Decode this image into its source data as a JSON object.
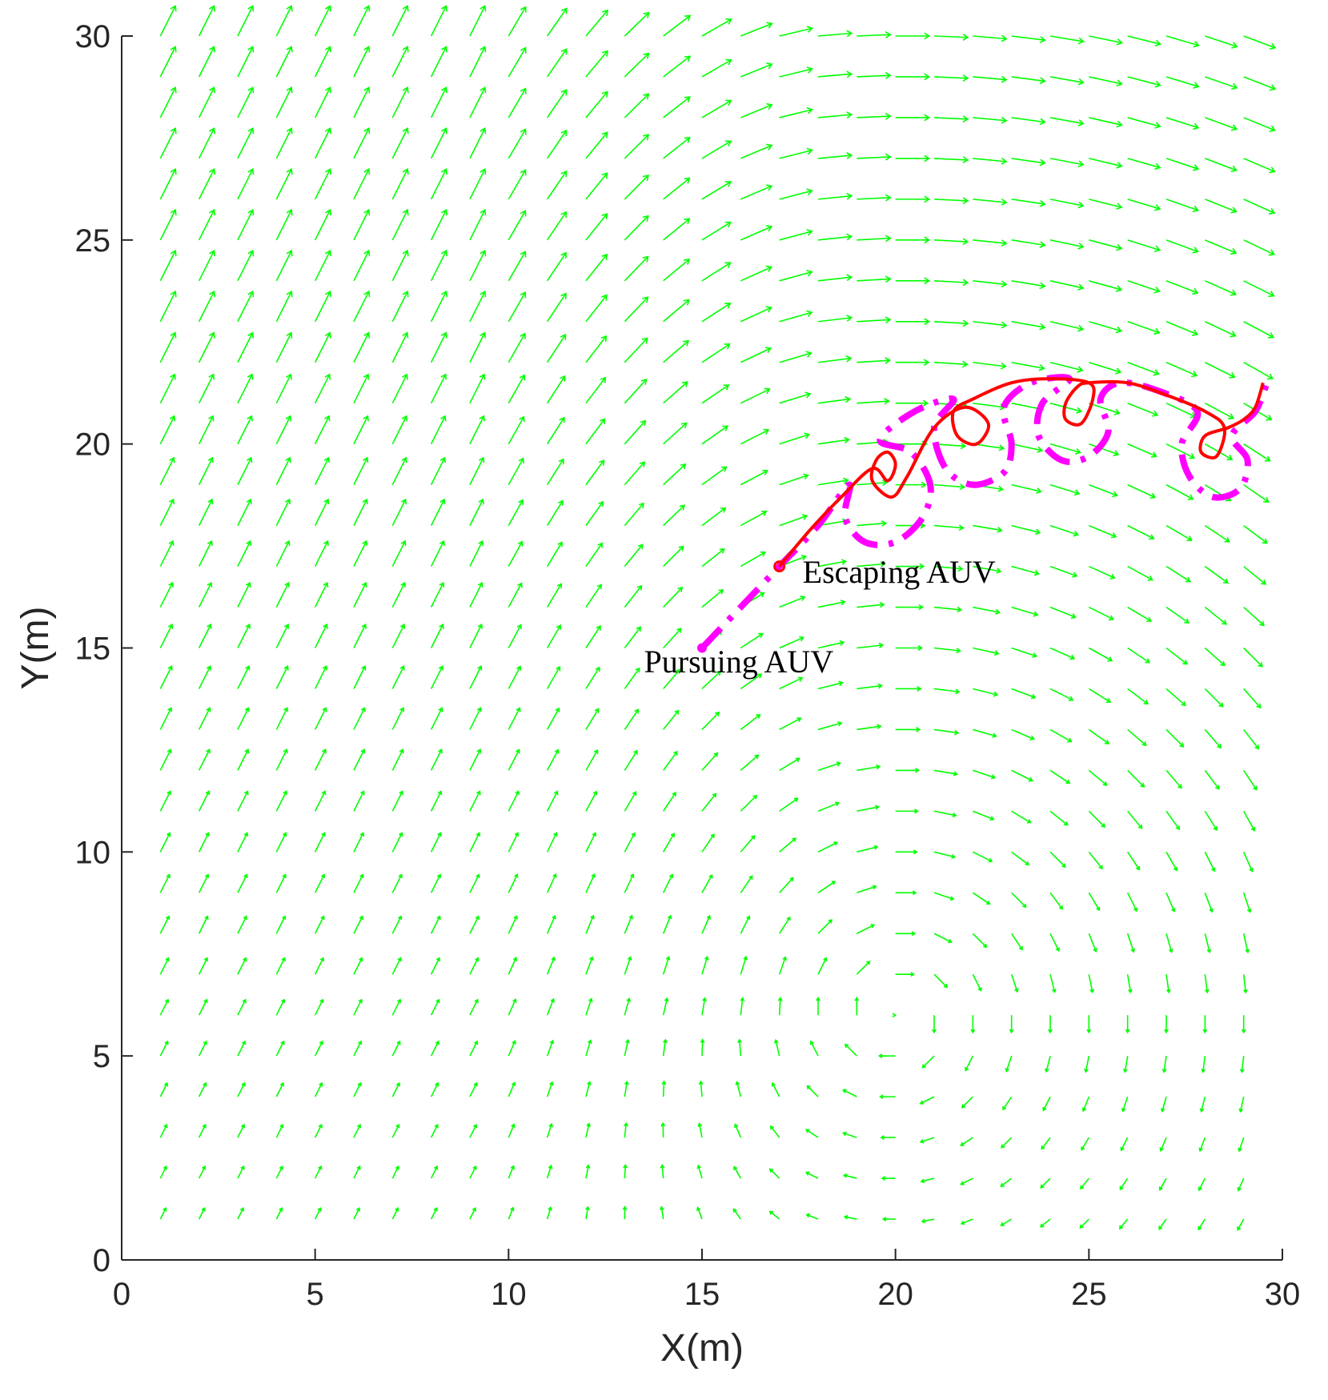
{
  "chart_data": {
    "type": "line",
    "xlabel": "X(m)",
    "ylabel": "Y(m)",
    "xlim": [
      0,
      30
    ],
    "ylim": [
      0,
      30
    ],
    "xticks": [
      0,
      5,
      10,
      15,
      20,
      25,
      30
    ],
    "yticks": [
      0,
      5,
      10,
      15,
      20,
      25,
      30
    ],
    "grid": false,
    "colors": {
      "field": "#00ff00",
      "pursuer": "#ff00ff",
      "escaper": "#ff0000",
      "axis": "#262626"
    },
    "vector_field": {
      "description": "current arrows on a regular grid",
      "x_grid": [
        1,
        2,
        3,
        4,
        5,
        6,
        7,
        8,
        9,
        10,
        11,
        12,
        13,
        14,
        15,
        16,
        17,
        18,
        19,
        20,
        21,
        22,
        23,
        24,
        25,
        26,
        27,
        28,
        29
      ],
      "y_grid": [
        1,
        2,
        3,
        4,
        5,
        6,
        7,
        8,
        9,
        10,
        11,
        12,
        13,
        14,
        15,
        16,
        17,
        18,
        19,
        20,
        21,
        22,
        23,
        24,
        25,
        26,
        27,
        28,
        29,
        30
      ],
      "vortex_center": [
        20,
        6
      ],
      "uniform_direction": [
        0.5,
        1.0
      ]
    },
    "series": [
      {
        "marker": "start-dot",
        "style": "dash-dot",
        "points": [
          [
            15,
            15
          ],
          [
            16,
            16
          ],
          [
            17,
            17
          ],
          [
            18,
            18
          ],
          [
            18.8,
            19.0
          ],
          [
            18.7,
            18.2
          ],
          [
            19.2,
            17.6
          ],
          [
            20.0,
            17.6
          ],
          [
            20.7,
            18.2
          ],
          [
            20.9,
            19.0
          ],
          [
            20.4,
            19.8
          ],
          [
            19.6,
            20.1
          ],
          [
            20.5,
            20.8
          ],
          [
            21.5,
            21.1
          ],
          [
            21.0,
            20.4
          ],
          [
            21.3,
            19.4
          ],
          [
            22.0,
            19.0
          ],
          [
            22.8,
            19.3
          ],
          [
            23.0,
            20.0
          ],
          [
            22.8,
            20.9
          ],
          [
            23.5,
            21.5
          ],
          [
            24.5,
            21.6
          ],
          [
            23.8,
            21.0
          ],
          [
            23.7,
            20.2
          ],
          [
            24.3,
            19.6
          ],
          [
            25.0,
            19.7
          ],
          [
            25.5,
            20.3
          ],
          [
            25.3,
            21.1
          ],
          [
            25.8,
            21.5
          ],
          [
            26.8,
            21.3
          ],
          [
            27.8,
            20.8
          ],
          [
            27.4,
            20.0
          ],
          [
            27.6,
            19.2
          ],
          [
            28.2,
            18.7
          ],
          [
            28.9,
            18.9
          ],
          [
            29.1,
            19.6
          ],
          [
            28.7,
            20.2
          ],
          [
            29.3,
            20.8
          ],
          [
            29.6,
            21.5
          ]
        ]
      },
      {
        "marker": "start-circle",
        "style": "solid",
        "points": [
          [
            17,
            17
          ],
          [
            17.8,
            17.9
          ],
          [
            18.6,
            18.7
          ],
          [
            19.4,
            19.4
          ],
          [
            19.8,
            19.1
          ],
          [
            20.0,
            19.5
          ],
          [
            19.8,
            19.8
          ],
          [
            19.5,
            19.6
          ],
          [
            19.4,
            19.1
          ],
          [
            19.9,
            18.7
          ],
          [
            20.3,
            19.2
          ],
          [
            21.0,
            20.4
          ],
          [
            21.8,
            20.9
          ],
          [
            22.4,
            20.5
          ],
          [
            22.1,
            20.0
          ],
          [
            21.6,
            20.2
          ],
          [
            21.5,
            20.8
          ],
          [
            22.0,
            21.1
          ],
          [
            23.0,
            21.5
          ],
          [
            24.0,
            21.6
          ],
          [
            25.0,
            21.5
          ],
          [
            25.1,
            21.1
          ],
          [
            24.8,
            20.5
          ],
          [
            24.4,
            20.6
          ],
          [
            24.4,
            21.0
          ],
          [
            24.7,
            21.4
          ],
          [
            25.0,
            21.5
          ],
          [
            26.0,
            21.5
          ],
          [
            27.0,
            21.2
          ],
          [
            28.0,
            20.8
          ],
          [
            28.5,
            20.4
          ],
          [
            28.3,
            19.7
          ],
          [
            27.9,
            19.8
          ],
          [
            28.0,
            20.2
          ],
          [
            28.6,
            20.4
          ],
          [
            29.0,
            20.6
          ],
          [
            29.3,
            20.9
          ],
          [
            29.5,
            21.5
          ]
        ]
      }
    ],
    "annotations": [
      {
        "text": "Escaping AUV",
        "x": 17.6,
        "y": 16.6
      },
      {
        "text": "Pursuing AUV",
        "x": 13.5,
        "y": 14.4
      }
    ]
  }
}
